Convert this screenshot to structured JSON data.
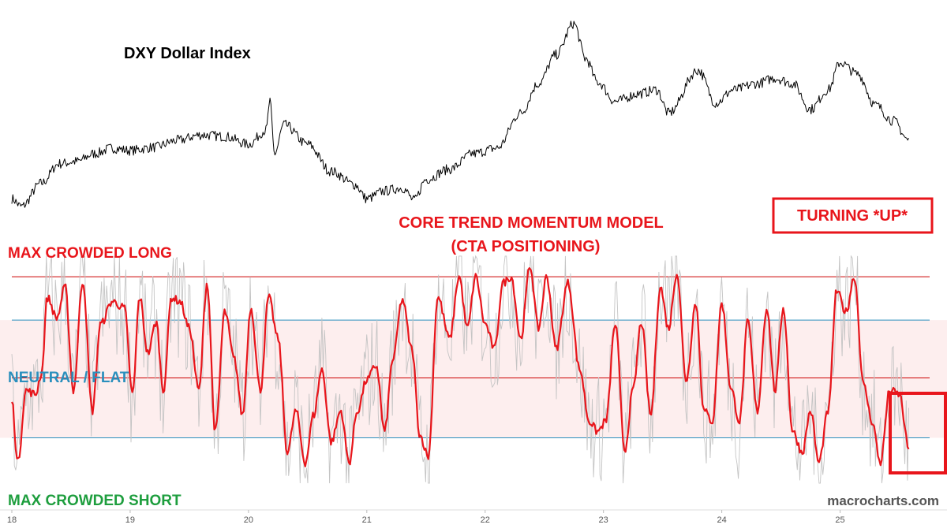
{
  "chart_data": [
    {
      "type": "line",
      "title": "DXY Dollar Index",
      "xlabel": "",
      "ylabel": "",
      "x_ticks": [
        "18",
        "19",
        "20",
        "21",
        "22",
        "23",
        "24",
        "25"
      ],
      "x_range": [
        2018.0,
        2025.75
      ],
      "grid": false,
      "series": [
        {
          "name": "",
          "color": "#000000",
          "x": [
            2018.0,
            2018.08,
            2018.25,
            2018.4,
            2018.55,
            2018.7,
            2018.85,
            2019.0,
            2019.2,
            2019.4,
            2019.6,
            2019.8,
            2020.0,
            2020.15,
            2020.18,
            2020.22,
            2020.3,
            2020.5,
            2020.7,
            2020.9,
            2021.0,
            2021.15,
            2021.3,
            2021.4,
            2021.5,
            2021.7,
            2021.9,
            2022.1,
            2022.3,
            2022.45,
            2022.6,
            2022.75,
            2022.85,
            2022.95,
            2023.1,
            2023.3,
            2023.45,
            2023.55,
            2023.8,
            2023.95,
            2024.1,
            2024.3,
            2024.45,
            2024.6,
            2024.75,
            2024.9,
            2025.0,
            2025.15,
            2025.3,
            2025.45,
            2025.58
          ],
          "y": [
            90.0,
            89.0,
            92.0,
            94.5,
            94.8,
            95.8,
            96.5,
            96.2,
            96.6,
            97.5,
            98.2,
            98.0,
            97.0,
            98.8,
            102.5,
            95.8,
            99.5,
            97.0,
            93.5,
            91.8,
            90.0,
            91.0,
            91.4,
            89.8,
            92.5,
            93.8,
            95.8,
            96.5,
            101.0,
            104.8,
            108.5,
            112.5,
            108.0,
            105.0,
            102.5,
            103.5,
            104.0,
            101.0,
            106.5,
            102.3,
            104.0,
            104.8,
            105.5,
            104.8,
            101.5,
            104.0,
            107.5,
            106.0,
            102.0,
            100.0,
            97.5
          ]
        }
      ]
    },
    {
      "type": "line",
      "title": "CORE TREND MOMENTUM MODEL",
      "subtitle": "(CTA POSITIONING)",
      "x_ticks": [
        "18",
        "19",
        "20",
        "21",
        "22",
        "23",
        "24",
        "25"
      ],
      "x_range": [
        2018.0,
        2025.75
      ],
      "y_range": [
        0,
        100
      ],
      "bands": [
        {
          "label": "MAX CROWDED LONG",
          "level": 95,
          "color": "#e8151b"
        },
        {
          "label": "NEUTRAL / FLAT",
          "level": 45,
          "color": "#2a8fbd"
        },
        {
          "label": "MAX CROWDED SHORT",
          "level": 0,
          "color": "#1e9e3e"
        }
      ],
      "reference_lines": [
        {
          "level": 95,
          "color": "#cc0000"
        },
        {
          "level": 74,
          "color": "#2a8fbd"
        },
        {
          "level": 46,
          "color": "#cc0000"
        },
        {
          "level": 17,
          "color": "#2a8fbd"
        }
      ],
      "shaded_range": [
        17,
        74
      ],
      "series": [
        {
          "name": "",
          "color": "#e8151b",
          "x": [
            2018.0,
            2018.05,
            2018.12,
            2018.2,
            2018.25,
            2018.3,
            2018.38,
            2018.45,
            2018.52,
            2018.6,
            2018.68,
            2018.75,
            2018.85,
            2018.95,
            2019.02,
            2019.08,
            2019.15,
            2019.22,
            2019.28,
            2019.35,
            2019.42,
            2019.5,
            2019.58,
            2019.65,
            2019.72,
            2019.8,
            2019.88,
            2019.95,
            2020.02,
            2020.1,
            2020.17,
            2020.25,
            2020.33,
            2020.4,
            2020.48,
            2020.55,
            2020.62,
            2020.7,
            2020.78,
            2020.85,
            2020.92,
            2021.0,
            2021.08,
            2021.15,
            2021.22,
            2021.3,
            2021.38,
            2021.45,
            2021.52,
            2021.6,
            2021.7,
            2021.78,
            2021.85,
            2021.92,
            2022.0,
            2022.08,
            2022.15,
            2022.22,
            2022.3,
            2022.38,
            2022.45,
            2022.52,
            2022.6,
            2022.7,
            2022.8,
            2022.88,
            2022.95,
            2023.02,
            2023.1,
            2023.18,
            2023.25,
            2023.32,
            2023.4,
            2023.48,
            2023.55,
            2023.62,
            2023.7,
            2023.78,
            2023.85,
            2023.92,
            2024.0,
            2024.08,
            2024.15,
            2024.22,
            2024.3,
            2024.38,
            2024.45,
            2024.52,
            2024.6,
            2024.68,
            2024.75,
            2024.82,
            2024.9,
            2024.97,
            2025.05,
            2025.12,
            2025.2,
            2025.27,
            2025.34,
            2025.42,
            2025.5,
            2025.58
          ],
          "y": [
            35,
            5,
            40,
            38,
            48,
            85,
            75,
            90,
            40,
            93,
            30,
            72,
            83,
            80,
            38,
            85,
            58,
            73,
            40,
            85,
            83,
            70,
            40,
            92,
            20,
            78,
            55,
            28,
            80,
            40,
            85,
            65,
            10,
            30,
            5,
            28,
            50,
            15,
            30,
            5,
            30,
            45,
            52,
            20,
            55,
            84,
            60,
            18,
            8,
            85,
            65,
            95,
            70,
            95,
            72,
            60,
            92,
            95,
            65,
            100,
            70,
            95,
            60,
            92,
            50,
            25,
            20,
            25,
            72,
            11,
            40,
            73,
            28,
            90,
            70,
            97,
            45,
            82,
            30,
            25,
            82,
            40,
            25,
            73,
            30,
            80,
            40,
            80,
            20,
            10,
            30,
            5,
            30,
            88,
            78,
            95,
            42,
            25,
            5,
            40,
            38,
            12
          ]
        }
      ]
    }
  ],
  "annotations": {
    "turning": "TURNING *UP*",
    "watermark": "macrocharts.com",
    "highlight_color": "#e8151b"
  }
}
